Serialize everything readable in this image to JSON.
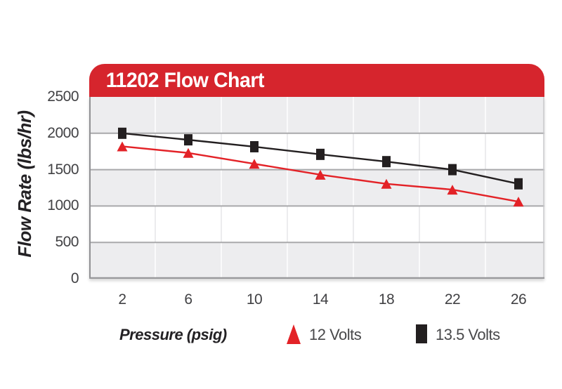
{
  "header": {
    "title": "11202 Flow Chart",
    "background_color": "#d6252d",
    "text_color": "#ffffff"
  },
  "chart_data": {
    "type": "line",
    "title": "11202 Flow Chart",
    "xlabel": "Pressure (psig)",
    "ylabel": "Flow Rate (lbs/hr)",
    "x": [
      2,
      6,
      10,
      14,
      18,
      22,
      26
    ],
    "x_tick_labels": [
      "2",
      "6",
      "10",
      "14",
      "18",
      "22",
      "26"
    ],
    "y_ticks": [
      2500,
      2000,
      1500,
      1000,
      500,
      0
    ],
    "y_tick_labels": [
      "2500",
      "2000",
      "1500",
      "1000",
      "500",
      "0"
    ],
    "ylim": [
      0,
      2500
    ],
    "grid": {
      "horizontal_lines": true,
      "vertical_lines": "between ticks",
      "row_shading": "alternating gray/white bands, gray at top"
    },
    "legend_position": "bottom",
    "series": [
      {
        "name": "12 Volts",
        "marker": "triangle",
        "color": "#e32227",
        "values": [
          1820,
          1730,
          1580,
          1430,
          1305,
          1225,
          1060
        ]
      },
      {
        "name": "13.5 Volts",
        "marker": "square",
        "color": "#231f20",
        "values": [
          2000,
          1910,
          1815,
          1710,
          1610,
          1500,
          1305
        ]
      }
    ]
  },
  "colors": {
    "band_gray": "#ededef",
    "horizontal_grid": "#a9a9ab",
    "vertical_grid_on_white": "#ececee",
    "vertical_grid_on_gray": "#fafafb",
    "axis_text": "#414144",
    "plot_border_left": "#919194",
    "plot_border_bottom": "#98989b",
    "plot_border_right": "#c9c9cc"
  }
}
